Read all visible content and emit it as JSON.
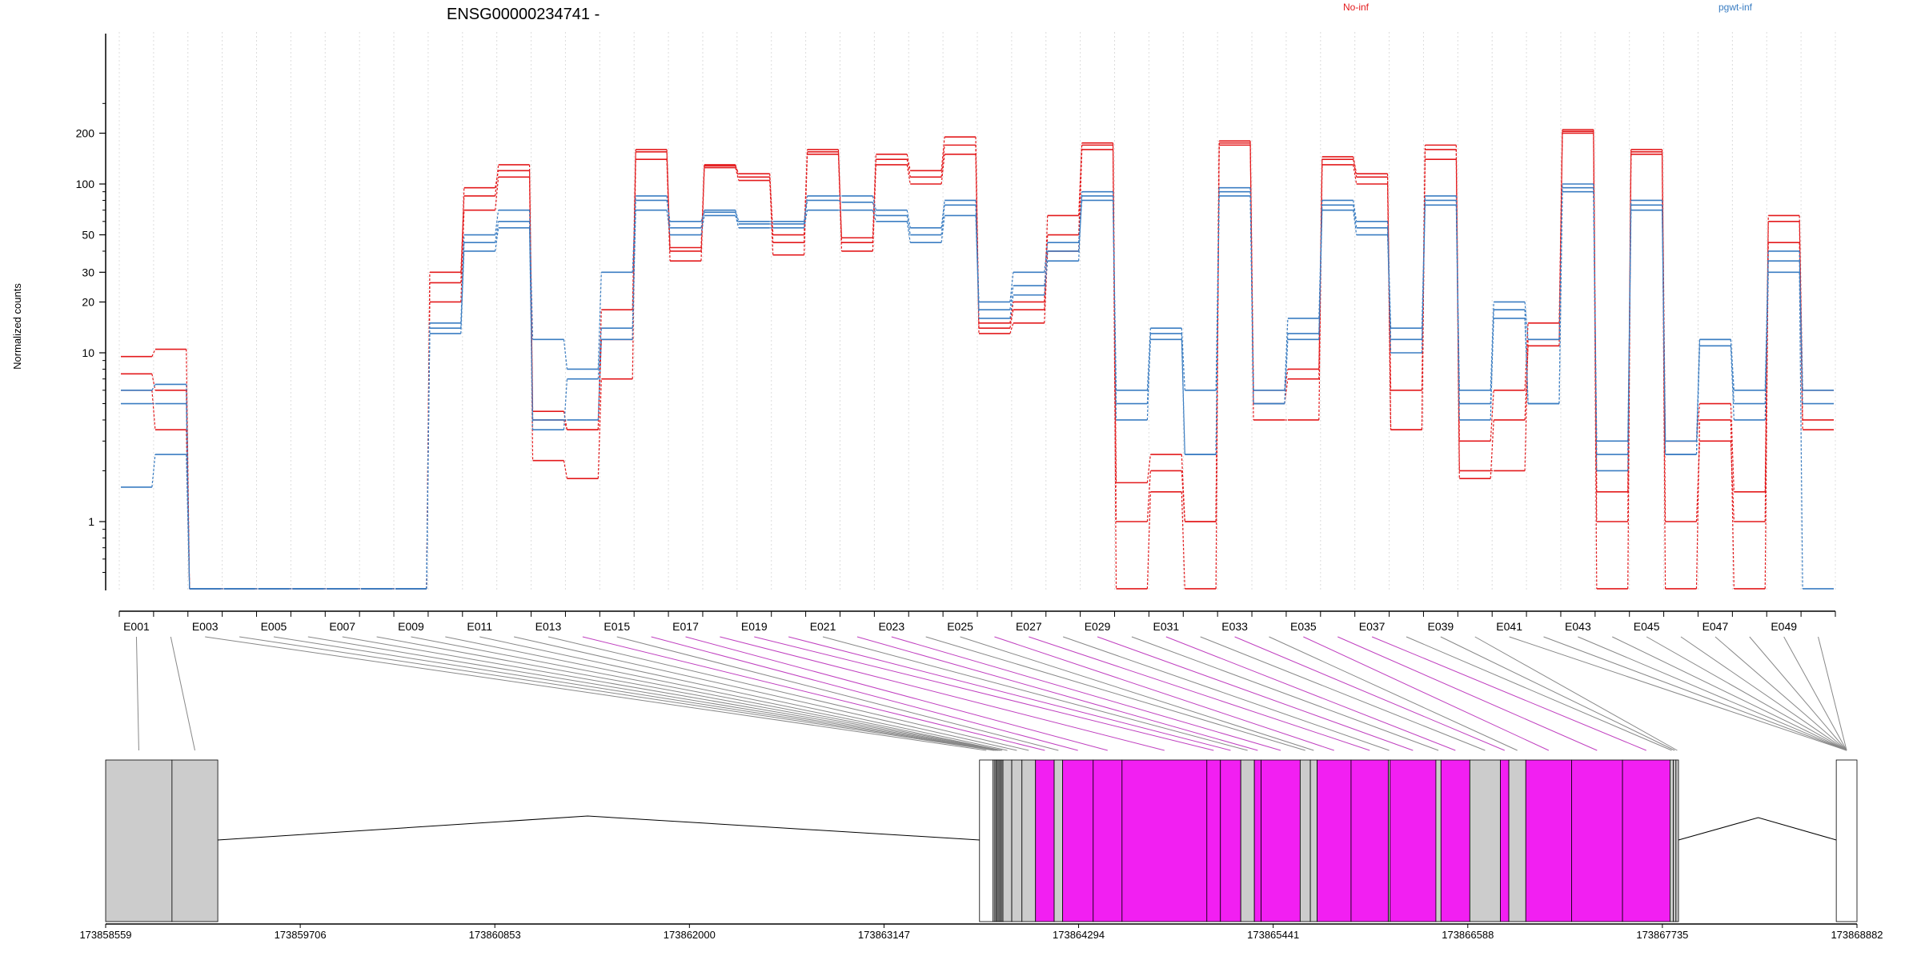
{
  "title": "ENSG00000234741 -",
  "legend": [
    {
      "label": "No-inf",
      "color": "#e31a1c"
    },
    {
      "label": "pgwt-inf",
      "color": "#3a7dc2"
    }
  ],
  "colors": {
    "exon_highlight": "#f21ff2",
    "exon_normal": "#cccccc",
    "connector_gray": "#888888",
    "connector_magenta": "#c040c0"
  },
  "chart_data": {
    "type": "line",
    "title": "ENSG00000234741 -",
    "ylabel": "Normalized counts",
    "yscale": "log",
    "yticks": [
      1,
      10,
      20,
      30,
      50,
      100,
      200
    ],
    "ylim": [
      0.4,
      250
    ],
    "bins": [
      "E001",
      "E002",
      "E003",
      "E004",
      "E005",
      "E006",
      "E007",
      "E008",
      "E009",
      "E010",
      "E011",
      "E012",
      "E013",
      "E014",
      "E015",
      "E016",
      "E017",
      "E018",
      "E019",
      "E020",
      "E021",
      "E022",
      "E023",
      "E024",
      "E025",
      "E026",
      "E027",
      "E028",
      "E029",
      "E030",
      "E031",
      "E032",
      "E033",
      "E034",
      "E035",
      "E036",
      "E037",
      "E038",
      "E039",
      "E040",
      "E041",
      "E042",
      "E043",
      "E044",
      "E045",
      "E046",
      "E047",
      "E048",
      "E049",
      "E050"
    ],
    "xtick_labels": [
      "E001",
      "E003",
      "E005",
      "E007",
      "E009",
      "E011",
      "E013",
      "E015",
      "E017",
      "E019",
      "E021",
      "E023",
      "E025",
      "E027",
      "E029",
      "E031",
      "E033",
      "E035",
      "E037",
      "E039",
      "E041",
      "E043",
      "E045",
      "E047",
      "E049"
    ],
    "series": [
      {
        "name": "No-inf",
        "color": "#e31a1c",
        "values": [
          9.5,
          10.5,
          0.4,
          0.4,
          0.4,
          0.4,
          0.4,
          0.4,
          0.4,
          26,
          95,
          120,
          4.5,
          3.5,
          12,
          160,
          40,
          130,
          110,
          45,
          160,
          45,
          140,
          110,
          170,
          14,
          18,
          50,
          170,
          1,
          2,
          1,
          170,
          5,
          7,
          140,
          110,
          3.5,
          160,
          2,
          2,
          12,
          200,
          1,
          155,
          1,
          3,
          1,
          60,
          4
        ]
      },
      {
        "name": "No-inf",
        "color": "#e31a1c",
        "values": [
          6,
          3.5,
          0.4,
          0.4,
          0.4,
          0.4,
          0.4,
          0.4,
          0.4,
          20,
          70,
          110,
          2.3,
          1.8,
          7,
          140,
          35,
          125,
          105,
          38,
          150,
          40,
          130,
          100,
          150,
          13,
          15,
          40,
          160,
          0.4,
          1.5,
          0.4,
          175,
          4,
          4,
          130,
          100,
          3.5,
          140,
          1.8,
          4,
          11,
          205,
          0.4,
          150,
          0.4,
          4,
          0.4,
          45,
          3.5
        ]
      },
      {
        "name": "No-inf",
        "color": "#e31a1c",
        "values": [
          7.5,
          6,
          0.4,
          0.4,
          0.4,
          0.4,
          0.4,
          0.4,
          0.4,
          30,
          85,
          130,
          4,
          3.5,
          18,
          155,
          42,
          128,
          115,
          50,
          155,
          48,
          150,
          120,
          190,
          15,
          20,
          65,
          175,
          1.7,
          2.5,
          1,
          180,
          6,
          8,
          145,
          115,
          6,
          170,
          3,
          6,
          15,
          210,
          1.5,
          160,
          3,
          5,
          1.5,
          65,
          6
        ]
      },
      {
        "name": "pgwt-inf",
        "color": "#3a7dc2",
        "values": [
          6,
          6.5,
          0.4,
          0.4,
          0.4,
          0.4,
          0.4,
          0.4,
          0.4,
          15,
          50,
          70,
          12,
          8,
          30,
          85,
          55,
          70,
          60,
          60,
          85,
          85,
          70,
          55,
          80,
          20,
          30,
          45,
          85,
          6,
          14,
          6,
          95,
          6,
          16,
          80,
          60,
          14,
          85,
          6,
          20,
          12,
          100,
          3,
          80,
          3,
          12,
          6,
          40,
          6
        ]
      },
      {
        "name": "pgwt-inf",
        "color": "#3a7dc2",
        "values": [
          5,
          5,
          0.4,
          0.4,
          0.4,
          0.4,
          0.4,
          0.4,
          0.4,
          13,
          45,
          60,
          4,
          4,
          12,
          70,
          50,
          65,
          55,
          55,
          70,
          70,
          60,
          45,
          65,
          18,
          25,
          40,
          80,
          5,
          12,
          2.5,
          85,
          5,
          12,
          70,
          50,
          12,
          75,
          5,
          16,
          5,
          90,
          2,
          70,
          2.5,
          12,
          5,
          35,
          5
        ]
      },
      {
        "name": "pgwt-inf",
        "color": "#3a7dc2",
        "values": [
          1.6,
          2.5,
          0.4,
          0.4,
          0.4,
          0.4,
          0.4,
          0.4,
          0.4,
          14,
          40,
          55,
          3.5,
          7,
          14,
          80,
          60,
          68,
          58,
          58,
          80,
          78,
          65,
          50,
          75,
          16,
          22,
          35,
          90,
          4,
          13,
          2.5,
          90,
          5,
          13,
          75,
          55,
          10,
          80,
          4,
          18,
          5,
          95,
          2.5,
          75,
          2.5,
          11,
          4,
          30,
          0.4
        ]
      }
    ],
    "genomic_axis_labels": [
      "173858559",
      "173859706",
      "173860853",
      "173862000",
      "173863147",
      "173864294",
      "173865441",
      "173866588",
      "173867735",
      "173868882"
    ]
  }
}
